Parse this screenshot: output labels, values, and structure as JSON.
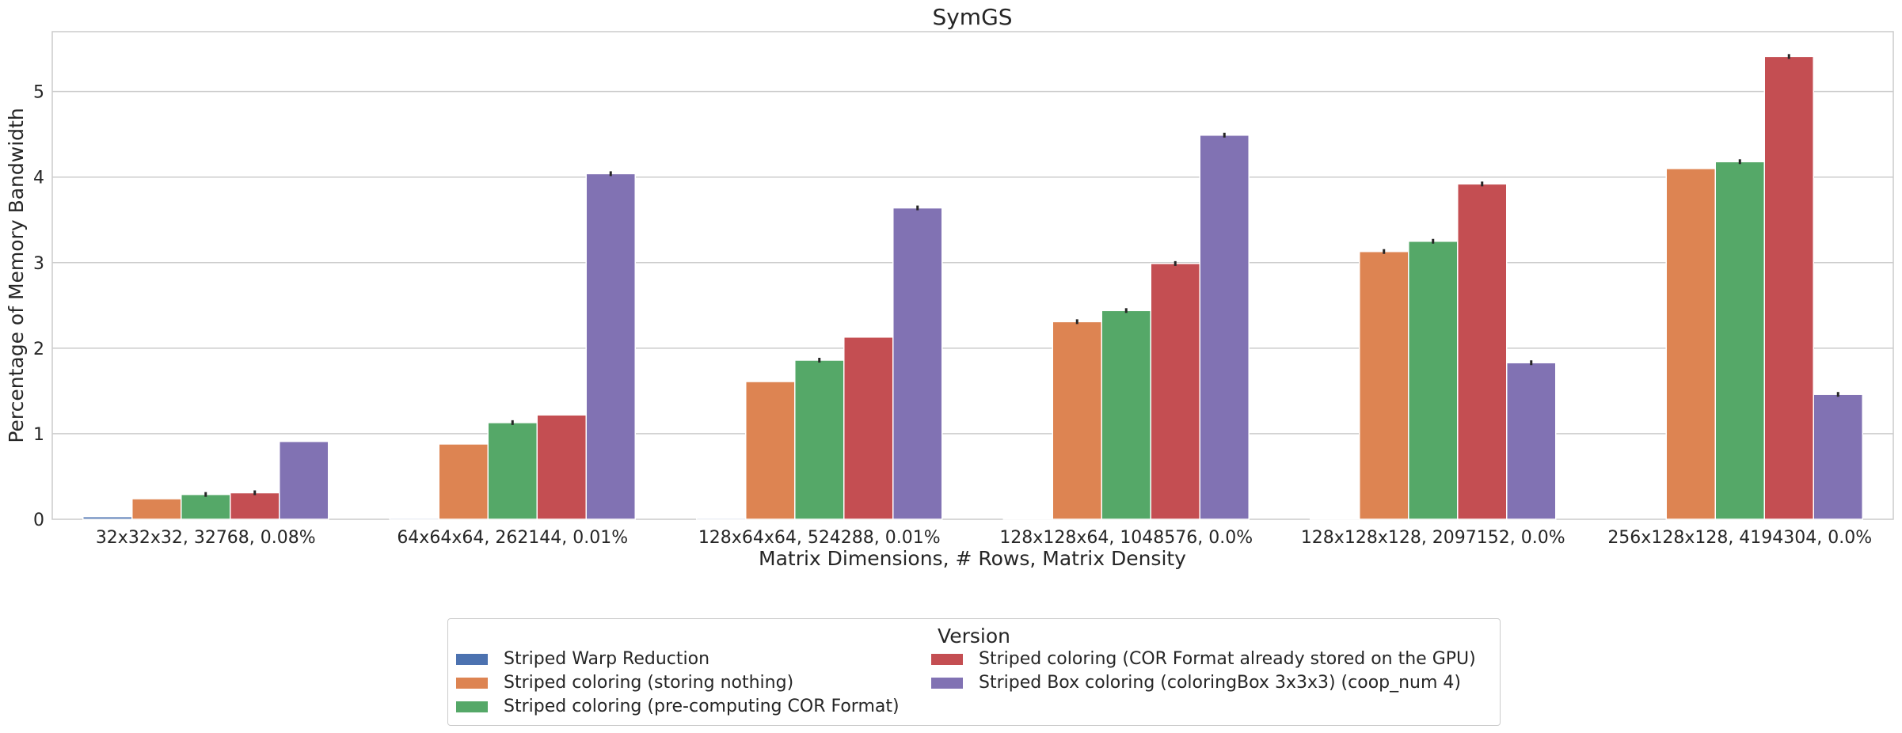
{
  "chart_data": {
    "type": "bar",
    "title": "SymGS",
    "xlabel": "Matrix Dimensions, # Rows, Matrix Density",
    "ylabel": "Percentage of Memory Bandwidth",
    "ylim": [
      0,
      5.7
    ],
    "yticks": [
      0,
      1,
      2,
      3,
      4,
      5
    ],
    "ytick_labels": [
      "0",
      "1",
      "2",
      "3",
      "4",
      "5"
    ],
    "grid": true,
    "legend_title": "Version",
    "legend_position": "bottom-center",
    "categories": [
      "32x32x32, 32768, 0.08%",
      "64x64x64, 262144, 0.01%",
      "128x64x64, 524288, 0.01%",
      "128x128x64, 1048576, 0.0%",
      "128x128x128, 2097152, 0.0%",
      "256x128x128, 4194304, 0.0%"
    ],
    "series": [
      {
        "name": "Striped Warp Reduction",
        "color": "#4c72b0",
        "values": [
          0.03,
          0.015,
          0.015,
          0.01,
          0.01,
          0.0
        ]
      },
      {
        "name": "Striped coloring (storing nothing)",
        "color": "#dd8452",
        "values": [
          0.24,
          0.88,
          1.61,
          2.31,
          3.13,
          4.1
        ]
      },
      {
        "name": "Striped coloring (pre-computing COR Format)",
        "color": "#55a868",
        "values": [
          0.29,
          1.13,
          1.86,
          2.44,
          3.25,
          4.18
        ]
      },
      {
        "name": "Striped coloring (COR Format already stored on the GPU)",
        "color": "#c44e52",
        "values": [
          0.31,
          1.22,
          2.13,
          2.99,
          3.92,
          5.41
        ]
      },
      {
        "name": "Striped Box coloring (coloringBox 3x3x3) (coop_num 4)",
        "color": "#8172b3",
        "values": [
          0.91,
          4.04,
          3.64,
          4.49,
          1.83,
          1.46
        ]
      }
    ],
    "error_bars_on": [
      [
        false,
        false,
        true,
        true,
        false
      ],
      [
        false,
        false,
        true,
        false,
        true
      ],
      [
        false,
        false,
        true,
        false,
        true
      ],
      [
        false,
        true,
        true,
        true,
        true
      ],
      [
        false,
        true,
        true,
        true,
        true
      ],
      [
        false,
        false,
        true,
        true,
        true
      ]
    ]
  }
}
